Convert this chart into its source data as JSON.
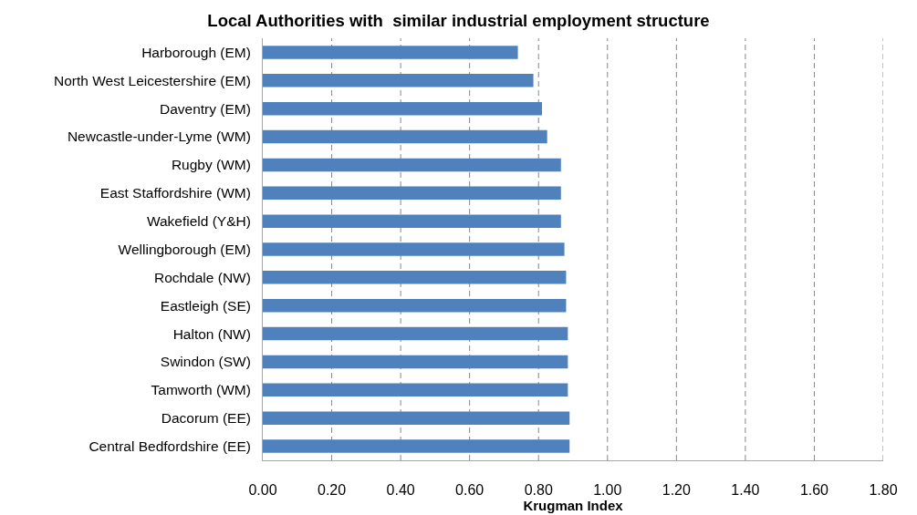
{
  "chart_data": {
    "type": "bar",
    "orientation": "horizontal",
    "title": "Local Authorities with  similar industrial employment structure",
    "xlabel": "Krugman Index",
    "categories": [
      "Harborough (EM)",
      "North West Leicestershire (EM)",
      "Daventry (EM)",
      "Newcastle-under-Lyme (WM)",
      "Rugby (WM)",
      "East Staffordshire (WM)",
      "Wakefield (Y&H)",
      "Wellingborough (EM)",
      "Rochdale (NW)",
      "Eastleigh (SE)",
      "Halton (NW)",
      "Swindon (SW)",
      "Tamworth (WM)",
      "Dacorum (EE)",
      "Central Bedfordshire (EE)"
    ],
    "values": [
      0.74,
      0.785,
      0.81,
      0.825,
      0.865,
      0.865,
      0.865,
      0.875,
      0.88,
      0.88,
      0.885,
      0.885,
      0.885,
      0.89,
      0.89
    ],
    "color": "#4f81bd",
    "xlim": [
      0,
      1.8
    ],
    "xticks": [
      {
        "value": 0,
        "label": "0.00"
      },
      {
        "value": 0.2,
        "label": "0.20"
      },
      {
        "value": 0.4,
        "label": "0.40"
      },
      {
        "value": 0.6,
        "label": "0.60"
      },
      {
        "value": 0.8,
        "label": "0.80"
      },
      {
        "value": 1.0,
        "label": "1.00"
      },
      {
        "value": 1.2,
        "label": "1.20"
      },
      {
        "value": 1.4,
        "label": "1.40"
      },
      {
        "value": 1.6,
        "label": "1.60"
      },
      {
        "value": 1.8,
        "label": "1.80"
      }
    ],
    "grid": "x",
    "line_style": "dashed"
  }
}
